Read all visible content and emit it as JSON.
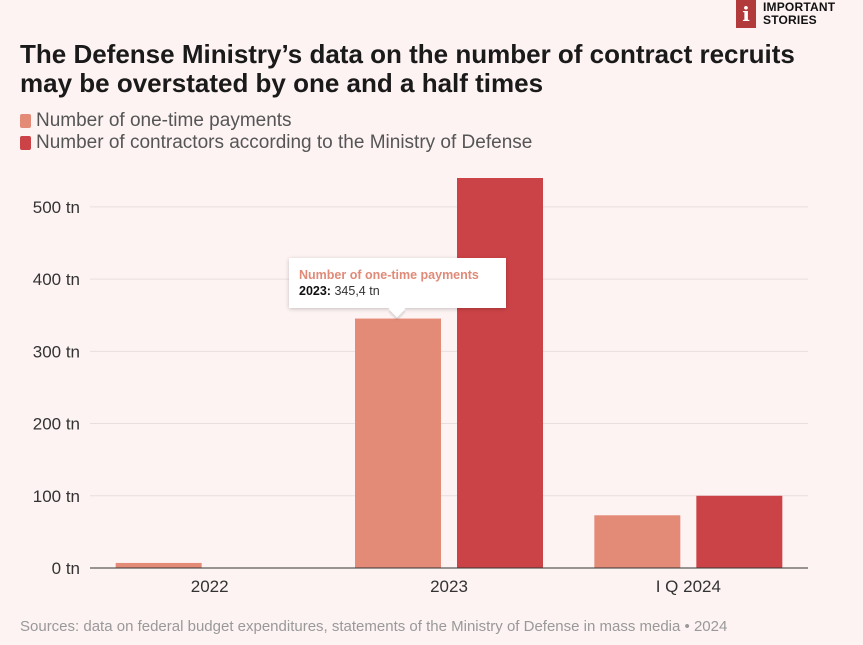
{
  "brand": {
    "mark": "i",
    "line1": "IMPORTANT",
    "line2": "STORIES"
  },
  "title": "The Defense Ministry’s data on the number of contract recruits may be overstated by one and a half times",
  "source": "Sources: data on federal budget expenditures, statements of the Ministry of Defense in mass media • 2024",
  "tooltip": {
    "series": "Number of one-time payments",
    "category": "2023:",
    "value": "345,4 tn"
  },
  "chart_data": {
    "type": "bar",
    "categories": [
      "2022",
      "2023",
      "I Q 2024"
    ],
    "series": [
      {
        "name": "Number of one-time payments",
        "color": "#e48b78",
        "values": [
          7,
          345.4,
          73
        ]
      },
      {
        "name": "Number of contractors according to the Ministry of Defense",
        "color": "#cc4347",
        "values": [
          0,
          540,
          100
        ]
      }
    ],
    "yticks": [
      0,
      100,
      200,
      300,
      400,
      500
    ],
    "ytick_labels": [
      "0 tn",
      "100 tn",
      "200 tn",
      "300 tn",
      "400 tn",
      "500 tn"
    ],
    "ylim": [
      0,
      540
    ],
    "grid": true,
    "legend_position": "top-left"
  }
}
